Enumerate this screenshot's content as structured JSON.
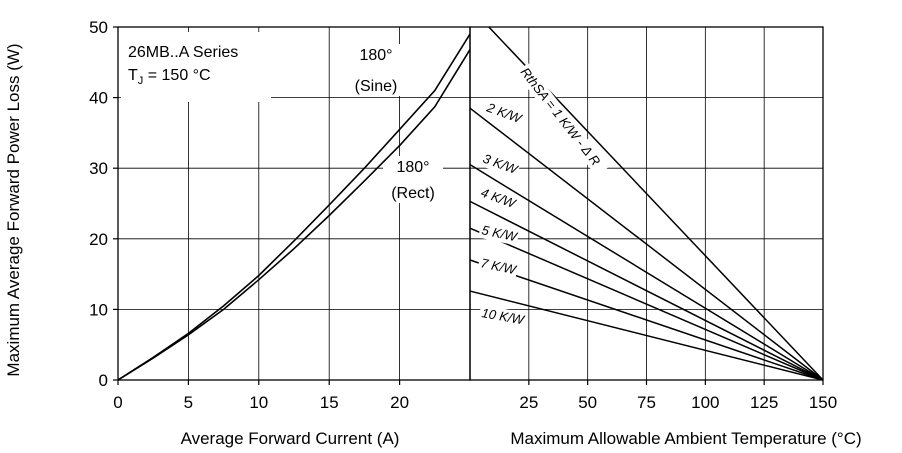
{
  "chart_data": [
    {
      "type": "line",
      "title": "",
      "xlabel": "Average Forward Current (A)",
      "ylabel": "Maximum Average Forward Power Loss (W)",
      "xlim": [
        0,
        25
      ],
      "ylim": [
        0,
        50
      ],
      "x_ticks": [
        "0",
        "5",
        "10",
        "15",
        "20"
      ],
      "y_ticks": [
        "0",
        "10",
        "20",
        "30",
        "40",
        "50"
      ],
      "grid": true,
      "annotation": {
        "line1": "26MB..A Series",
        "tj_symbol": "T",
        "tj_sub": "J",
        "tj_rest": " = 150 °C"
      },
      "series": [
        {
          "name": "180° (Sine)",
          "label_top": "180°",
          "label_bottom": "(Sine)",
          "x": [
            0,
            2.5,
            5,
            7.5,
            10,
            12.5,
            15,
            17.5,
            20,
            22.5,
            25
          ],
          "y": [
            0,
            3.2,
            6.6,
            10.5,
            14.8,
            19.7,
            24.8,
            30.0,
            35.5,
            41.0,
            49.0
          ]
        },
        {
          "name": "180° (Rect)",
          "label_top": "180°",
          "label_bottom": "(Rect)",
          "x": [
            0,
            2.5,
            5,
            7.5,
            10,
            12.5,
            15,
            17.5,
            20,
            22.5,
            25
          ],
          "y": [
            0,
            3.1,
            6.4,
            10.0,
            14.2,
            18.6,
            23.3,
            28.2,
            33.2,
            38.7,
            46.8
          ]
        }
      ]
    },
    {
      "type": "line",
      "title": "",
      "xlabel": "Maximum Allowable Ambient Temperature (°C)",
      "xlim": [
        0,
        150
      ],
      "ylim": [
        0,
        50
      ],
      "x_ticks": [
        "25",
        "50",
        "75",
        "100",
        "125",
        "150"
      ],
      "grid": true,
      "series": [
        {
          "name": "RthSA = 1 K/W - Δ R",
          "x": [
            8,
            150
          ],
          "y": [
            50,
            0
          ]
        },
        {
          "name": "2 K/W",
          "x": [
            0,
            150
          ],
          "y": [
            38.5,
            0
          ]
        },
        {
          "name": "3 K/W",
          "x": [
            0,
            150
          ],
          "y": [
            30.5,
            0
          ]
        },
        {
          "name": "4 K/W",
          "x": [
            0,
            150
          ],
          "y": [
            25.3,
            0
          ]
        },
        {
          "name": "5 K/W",
          "x": [
            0,
            150
          ],
          "y": [
            21.5,
            0
          ]
        },
        {
          "name": "7 K/W",
          "x": [
            0,
            150
          ],
          "y": [
            17.0,
            0
          ]
        },
        {
          "name": "10 K/W",
          "x": [
            0,
            150
          ],
          "y": [
            12.6,
            0
          ]
        }
      ]
    }
  ]
}
